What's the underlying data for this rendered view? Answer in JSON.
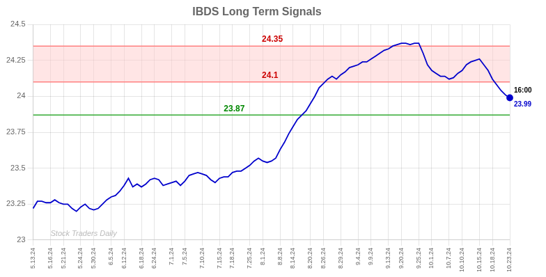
{
  "chart_data": {
    "type": "line",
    "title": "IBDS Long Term Signals",
    "color": "#0000cc",
    "grid": true,
    "ylim": [
      23.0,
      24.5
    ],
    "yticks": [
      23.0,
      23.25,
      23.5,
      23.75,
      24.0,
      24.25,
      24.5
    ],
    "hlines": [
      {
        "value": 24.35,
        "color": "#ff8080",
        "label": "24.35",
        "label_color": "#cc0000"
      },
      {
        "value": 24.1,
        "color": "#ff8080",
        "label": "24.1",
        "label_color": "#cc0000"
      },
      {
        "value": 23.87,
        "color": "#33aa33",
        "label": "23.87",
        "label_color": "#008800"
      }
    ],
    "band": {
      "range": [
        24.1,
        24.35
      ],
      "color": "#ffcccc"
    },
    "end_labels": [
      {
        "text": "16:00",
        "color": "#000000"
      },
      {
        "text": "23.99",
        "color": "#0000cc"
      }
    ],
    "watermark": {
      "text": "Stock Traders Daily",
      "color": "#bbbbbb"
    },
    "categories": [
      "5.13.24",
      null,
      null,
      null,
      "5.16.24",
      null,
      null,
      "5.21.24",
      null,
      null,
      null,
      "5.24.24",
      null,
      null,
      "5.30.24",
      null,
      null,
      null,
      "6.5.24",
      null,
      null,
      "6.12.24",
      null,
      null,
      null,
      "6.18.24",
      null,
      null,
      "6.24.24",
      null,
      null,
      null,
      "7.1.24",
      null,
      null,
      "7.5.24",
      null,
      null,
      null,
      "7.10.24",
      null,
      null,
      null,
      "7.15.24",
      null,
      null,
      "7.18.24",
      null,
      null,
      null,
      "7.25.24",
      null,
      null,
      "8.1.24",
      null,
      null,
      null,
      "8.8.24",
      null,
      null,
      "8.14.24",
      null,
      null,
      null,
      "8.20.24",
      null,
      null,
      "8.26.24",
      null,
      null,
      null,
      "8.29.24",
      null,
      null,
      null,
      "9.4.24",
      null,
      null,
      "9.9.24",
      null,
      null,
      null,
      "9.13.24",
      null,
      null,
      "9.20.24",
      null,
      null,
      null,
      "9.25.24",
      null,
      null,
      "10.1.24",
      null,
      null,
      null,
      "10.7.24",
      null,
      null,
      "10.10.24",
      null,
      null,
      null,
      "10.15.24",
      null,
      null,
      "10.18.24",
      null,
      null,
      null,
      "10.23.24"
    ],
    "values": [
      23.22,
      23.27,
      23.27,
      23.26,
      23.26,
      23.28,
      23.26,
      23.25,
      23.25,
      23.22,
      23.2,
      23.23,
      23.25,
      23.22,
      23.21,
      23.22,
      23.25,
      23.28,
      23.3,
      23.31,
      23.34,
      23.38,
      23.43,
      23.37,
      23.39,
      23.37,
      23.39,
      23.42,
      23.43,
      23.42,
      23.38,
      23.39,
      23.4,
      23.41,
      23.38,
      23.41,
      23.45,
      23.46,
      23.47,
      23.46,
      23.45,
      23.42,
      23.4,
      23.43,
      23.44,
      23.44,
      23.47,
      23.48,
      23.48,
      23.5,
      23.52,
      23.55,
      23.57,
      23.55,
      23.54,
      23.55,
      23.57,
      23.63,
      23.68,
      23.74,
      23.79,
      23.84,
      23.87,
      23.9,
      23.95,
      24.0,
      24.06,
      24.09,
      24.12,
      24.14,
      24.12,
      24.15,
      24.17,
      24.2,
      24.21,
      24.22,
      24.24,
      24.24,
      24.26,
      24.28,
      24.3,
      24.32,
      24.33,
      24.35,
      24.36,
      24.37,
      24.37,
      24.36,
      24.37,
      24.37,
      24.3,
      24.22,
      24.18,
      24.16,
      24.14,
      24.14,
      24.12,
      24.13,
      24.16,
      24.18,
      24.22,
      24.24,
      24.25,
      24.26,
      24.22,
      24.18,
      24.12,
      24.08,
      24.04,
      24.01,
      23.99
    ]
  }
}
